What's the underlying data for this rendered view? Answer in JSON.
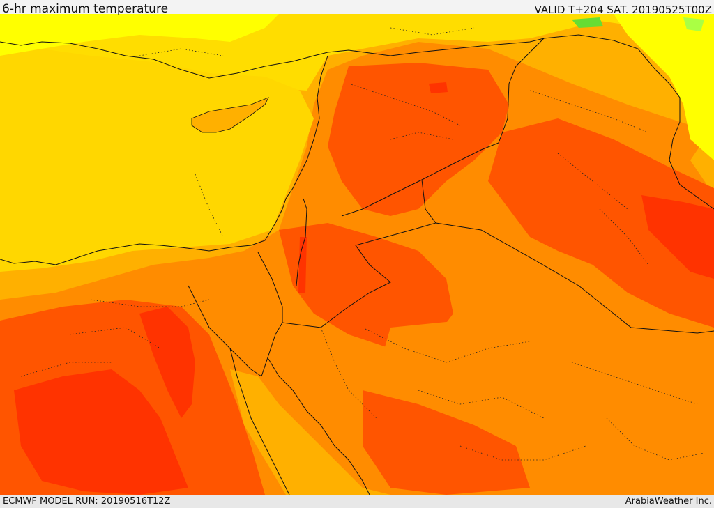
{
  "header": {
    "title": "6-hr maximum temperature",
    "valid": "VALID T+204 SAT. 20190525T00Z"
  },
  "footer": {
    "model_run": "ECMWF MODEL RUN: 20190516T12Z",
    "credit": "ArabiaWeather Inc."
  },
  "map": {
    "colors": {
      "coolest_green": "#66dd33",
      "light_green": "#aaff44",
      "yellow": "#ffff00",
      "yellow_orange": "#ffdd00",
      "light_orange": "#ffb000",
      "orange": "#ff8c00",
      "dark_orange": "#ff5500",
      "red_orange": "#ff3300",
      "border_line": "#111111"
    }
  }
}
